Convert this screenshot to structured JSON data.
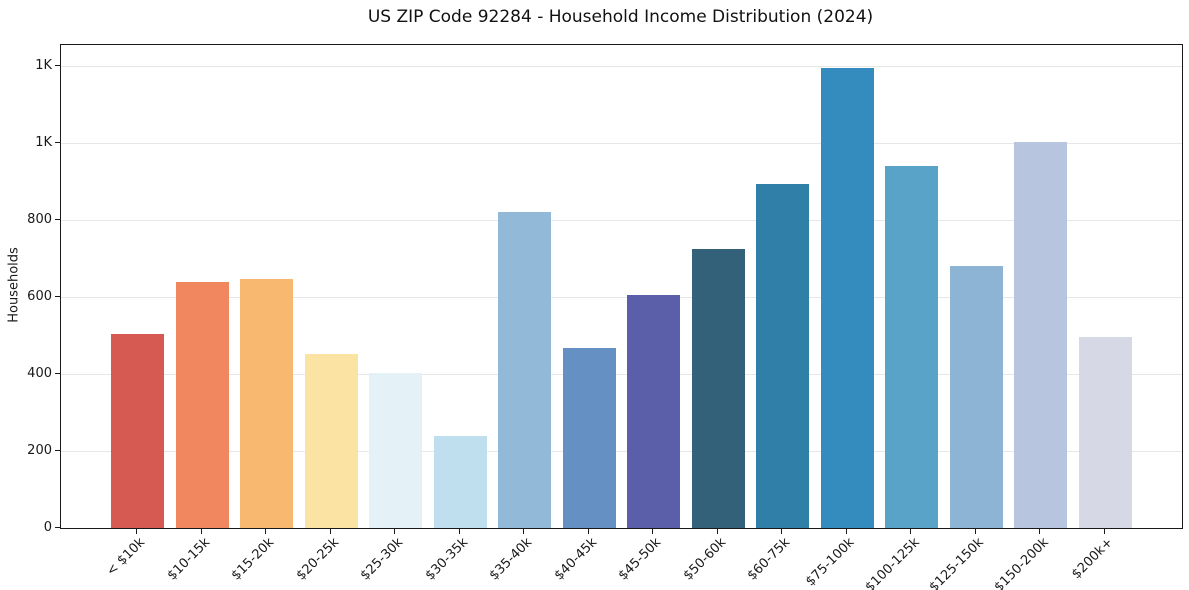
{
  "chart_data": {
    "type": "bar",
    "title": "US ZIP Code 92284 - Household Income Distribution (2024)",
    "xlabel": "",
    "ylabel": "Households",
    "categories": [
      "< $10k",
      "$10-15k",
      "$15-20k",
      "$20-25k",
      "$25-30k",
      "$30-35k",
      "$35-40k",
      "$40-45k",
      "$45-50k",
      "$50-60k",
      "$60-75k",
      "$75-100k",
      "$100-125k",
      "$125-150k",
      "$150-200k",
      "$200k+"
    ],
    "values": [
      505,
      640,
      648,
      451,
      404,
      240,
      820,
      469,
      606,
      724,
      893,
      1194,
      940,
      680,
      1003,
      497
    ],
    "bar_colors": [
      "#d65a51",
      "#f0875f",
      "#f9b870",
      "#fbe3a3",
      "#e4f1f6",
      "#bfdeee",
      "#92bad8",
      "#6590c4",
      "#5b5fa9",
      "#34617a",
      "#2f7fa9",
      "#348bbe",
      "#5aa3c8",
      "#8db4d5",
      "#b7c5de",
      "#d7d8e6"
    ],
    "ylim": [
      0,
      1255
    ],
    "xlim": [
      -1.19,
      16.19
    ],
    "bar_width_units": 0.82,
    "yticks": {
      "values": [
        0,
        200,
        400,
        600,
        800,
        1000,
        1200
      ],
      "labels": [
        "0",
        "200",
        "400",
        "600",
        "800",
        "1K",
        "1K"
      ]
    },
    "grid": "horizontal-only",
    "grid_color": "#e7e7e7",
    "spine_color": "#1a1a1a",
    "background": "#ffffff",
    "legend": "none",
    "xtick_rotation_deg": 45
  }
}
